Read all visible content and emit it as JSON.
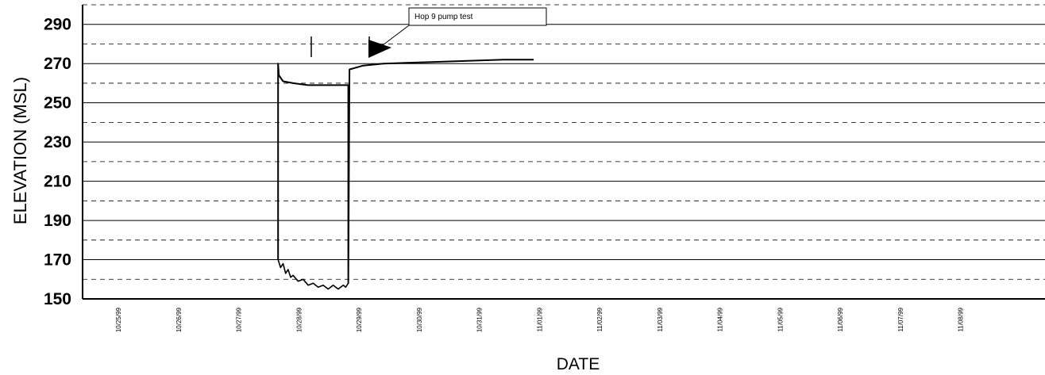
{
  "chart_data": {
    "type": "line",
    "title": "",
    "xlabel": "DATE",
    "ylabel": "ELEVATION (MSL)",
    "ylim": [
      150,
      300
    ],
    "yticks": [
      150,
      170,
      190,
      210,
      230,
      250,
      270,
      290
    ],
    "xlim": [
      "1999-10-25",
      "1999-11-10"
    ],
    "xtick_labels": [
      "10/25/99",
      "10/26/99",
      "10/27/99",
      "10/28/99",
      "10/29/99",
      "10/30/99",
      "10/31/99",
      "11/01/99",
      "11/02/99",
      "11/03/99",
      "11/04/99",
      "11/05/99",
      "11/06/99",
      "11/07/99",
      "11/08/99"
    ],
    "grid": true,
    "annotation": {
      "text": "Hop 9 pump test"
    },
    "series": [
      {
        "color": "#000000",
        "points": [
          [
            "1999-10-28 06:00",
            170
          ],
          [
            "1999-10-28 06:00",
            270
          ],
          [
            "1999-10-28 06:20",
            264
          ],
          [
            "1999-10-28 08:00",
            261
          ],
          [
            "1999-10-28 12:00",
            260
          ],
          [
            "1999-10-28 18:00",
            259
          ],
          [
            "1999-10-29 00:00",
            259
          ],
          [
            "1999-10-29 08:00",
            259
          ],
          [
            "1999-10-29 10:00",
            259
          ],
          [
            "1999-10-29 10:00",
            158
          ],
          [
            "1999-10-29 10:30",
            267
          ],
          [
            "1999-10-29 16:00",
            269
          ],
          [
            "1999-10-30 00:00",
            270
          ],
          [
            "1999-10-31 00:00",
            271
          ],
          [
            "1999-11-01 00:00",
            272
          ],
          [
            "1999-11-01 12:00",
            272
          ]
        ]
      },
      {
        "color": "#000000",
        "points": [
          [
            "1999-10-28 06:00",
            170
          ],
          [
            "1999-10-28 07:00",
            166
          ],
          [
            "1999-10-28 08:00",
            168
          ],
          [
            "1999-10-28 09:00",
            163
          ],
          [
            "1999-10-28 10:00",
            165
          ],
          [
            "1999-10-28 11:00",
            161
          ],
          [
            "1999-10-28 12:00",
            162
          ],
          [
            "1999-10-28 14:00",
            159
          ],
          [
            "1999-10-28 16:00",
            160
          ],
          [
            "1999-10-28 18:00",
            157
          ],
          [
            "1999-10-28 20:00",
            158
          ],
          [
            "1999-10-28 22:00",
            156
          ],
          [
            "1999-10-29 00:00",
            157
          ],
          [
            "1999-10-29 02:00",
            155
          ],
          [
            "1999-10-29 04:00",
            157
          ],
          [
            "1999-10-29 06:00",
            155
          ],
          [
            "1999-10-29 08:00",
            157
          ],
          [
            "1999-10-29 09:00",
            156
          ],
          [
            "1999-10-29 10:00",
            158
          ]
        ]
      }
    ]
  }
}
